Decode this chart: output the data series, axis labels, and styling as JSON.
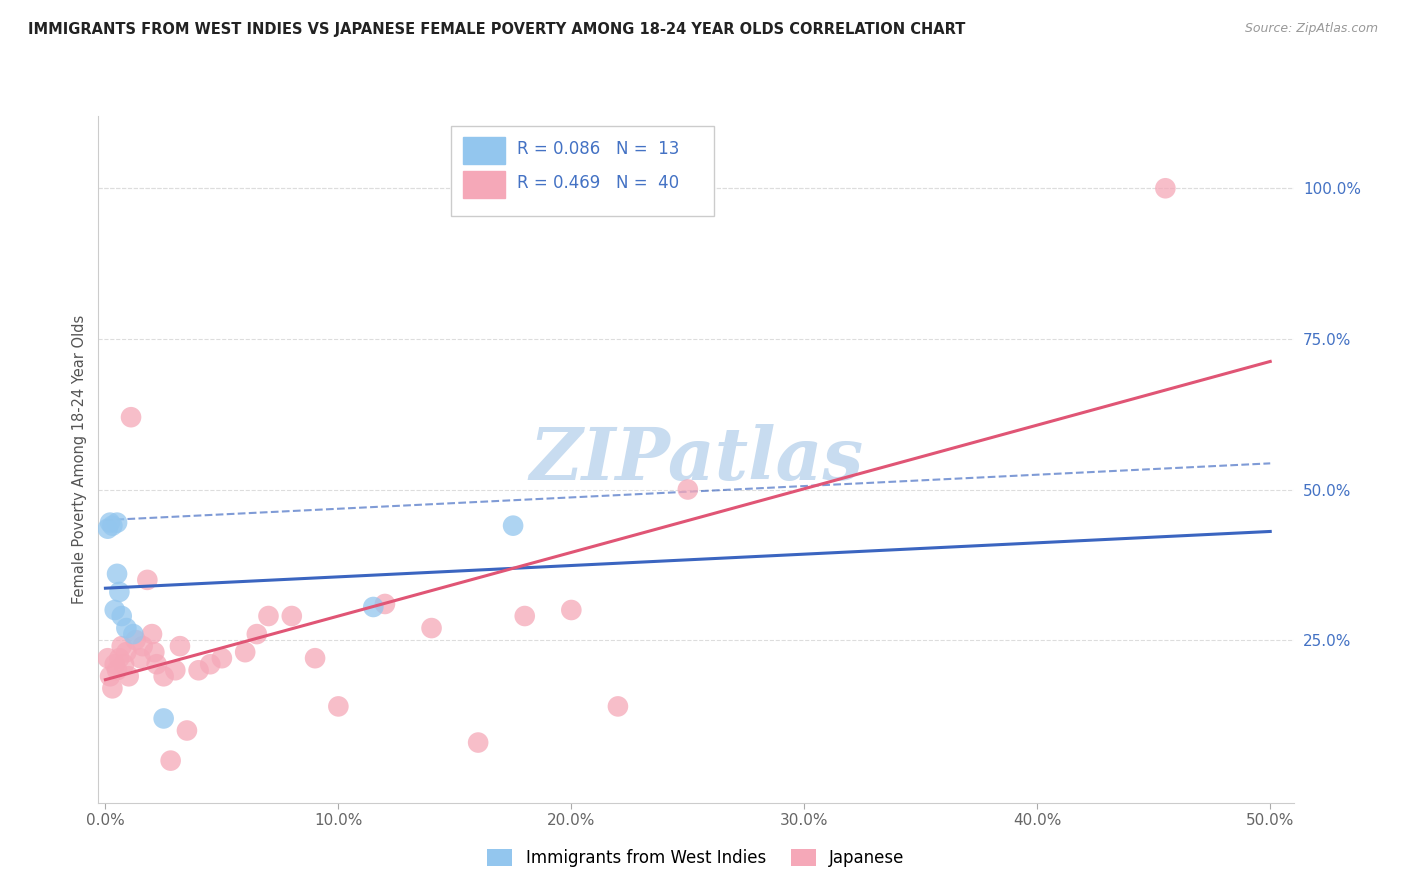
{
  "title": "IMMIGRANTS FROM WEST INDIES VS JAPANESE FEMALE POVERTY AMONG 18-24 YEAR OLDS CORRELATION CHART",
  "source": "Source: ZipAtlas.com",
  "ylabel": "Female Poverty Among 18-24 Year Olds",
  "x_tick_labels": [
    "0.0%",
    "10.0%",
    "20.0%",
    "30.0%",
    "40.0%",
    "50.0%"
  ],
  "x_tick_values": [
    0.0,
    0.1,
    0.2,
    0.3,
    0.4,
    0.5
  ],
  "y_tick_labels_right": [
    "25.0%",
    "50.0%",
    "75.0%",
    "100.0%"
  ],
  "y_tick_values": [
    0.25,
    0.5,
    0.75,
    1.0
  ],
  "xlim": [
    -0.003,
    0.51
  ],
  "ylim": [
    -0.02,
    1.12
  ],
  "legend_label1": "Immigrants from West Indies",
  "legend_label2": "Japanese",
  "R1": "0.086",
  "N1": "13",
  "R2": "0.469",
  "N2": "40",
  "color_blue": "#93C6EE",
  "color_pink": "#F5A8B8",
  "color_blue_line": "#3B65C0",
  "color_pink_line": "#E05575",
  "color_blue_text": "#4472C4",
  "color_grid": "#DDDDDD",
  "watermark_color": "#C8DCF0",
  "blue_x": [
    0.001,
    0.002,
    0.003,
    0.004,
    0.005,
    0.005,
    0.006,
    0.007,
    0.009,
    0.012,
    0.025,
    0.115,
    0.175
  ],
  "blue_y": [
    0.435,
    0.445,
    0.44,
    0.3,
    0.445,
    0.36,
    0.33,
    0.29,
    0.27,
    0.26,
    0.12,
    0.305,
    0.44
  ],
  "pink_x": [
    0.001,
    0.002,
    0.003,
    0.004,
    0.005,
    0.006,
    0.007,
    0.008,
    0.009,
    0.01,
    0.011,
    0.013,
    0.015,
    0.016,
    0.018,
    0.02,
    0.021,
    0.022,
    0.025,
    0.028,
    0.03,
    0.032,
    0.035,
    0.04,
    0.045,
    0.05,
    0.06,
    0.065,
    0.07,
    0.08,
    0.09,
    0.1,
    0.12,
    0.14,
    0.16,
    0.18,
    0.2,
    0.22,
    0.25,
    0.455
  ],
  "pink_y": [
    0.22,
    0.19,
    0.17,
    0.21,
    0.2,
    0.22,
    0.24,
    0.21,
    0.23,
    0.19,
    0.62,
    0.25,
    0.22,
    0.24,
    0.35,
    0.26,
    0.23,
    0.21,
    0.19,
    0.05,
    0.2,
    0.24,
    0.1,
    0.2,
    0.21,
    0.22,
    0.23,
    0.26,
    0.29,
    0.29,
    0.22,
    0.14,
    0.31,
    0.27,
    0.08,
    0.29,
    0.3,
    0.14,
    0.5,
    1.0
  ]
}
